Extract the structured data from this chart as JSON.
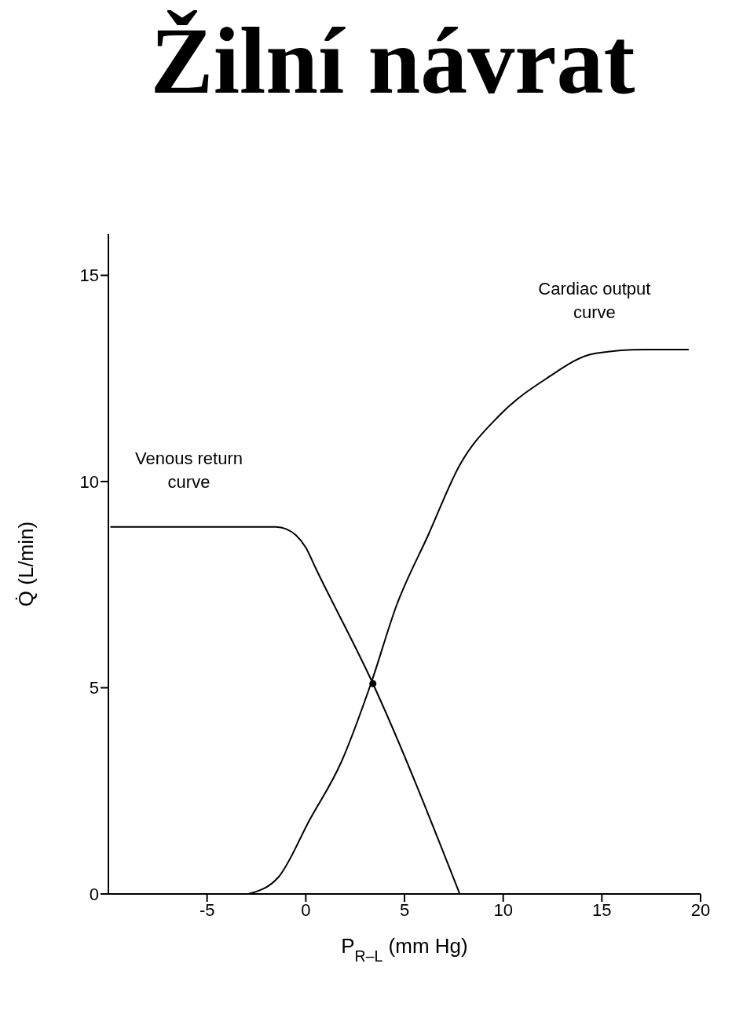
{
  "chart_data": {
    "type": "line",
    "title": "Žilní návrat",
    "xlabel": "P$_{R–L}$ (mm Hg)",
    "ylabel": "Q̇ (L/min)",
    "xlim": [
      -10,
      20
    ],
    "ylim": [
      0,
      16
    ],
    "xticks": [
      -5,
      0,
      5,
      10,
      15,
      20
    ],
    "yticks": [
      0,
      5,
      10,
      15
    ],
    "grid": false,
    "marker": "none",
    "line_style": "solid",
    "series": [
      {
        "name": "Venous return curve",
        "color": "#000000",
        "x": [
          -9.9,
          -1.5,
          -1,
          -0.5,
          0,
          0.5,
          3.4,
          7.8
        ],
        "values": [
          8.9,
          8.9,
          8.85,
          8.7,
          8.4,
          7.9,
          5.1,
          0
        ]
      },
      {
        "name": "Cardiac output curve",
        "color": "#000000",
        "x": [
          -2.9,
          -1.4,
          0.2,
          1.8,
          3.3,
          4.6,
          6.2,
          7.8,
          9.8,
          12.2,
          14.6,
          17.1,
          19.4
        ],
        "values": [
          0,
          0.4,
          1.8,
          3.2,
          5.1,
          7.0,
          8.7,
          10.4,
          11.6,
          12.5,
          13.1,
          13.2,
          13.2
        ]
      },
      {
        "type": "scatter",
        "color": "#000000",
        "marker": "circle",
        "x": [
          3.4
        ],
        "values": [
          5.1
        ]
      }
    ]
  }
}
